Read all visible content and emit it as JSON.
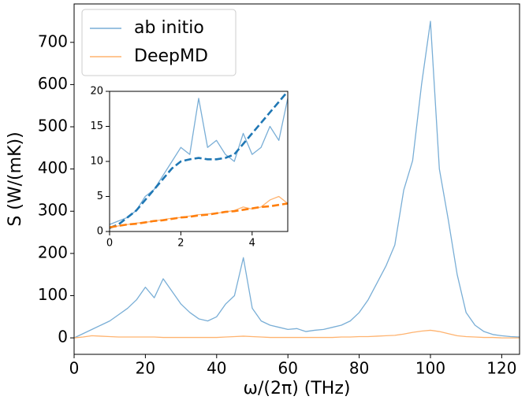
{
  "chart_data": [
    {
      "type": "line",
      "xlabel": "ω/(2π) (THz)",
      "ylabel": "S (W/(mK))",
      "x": [
        0,
        2.5,
        5,
        7.5,
        10,
        12.5,
        15,
        17.5,
        20,
        22.5,
        25,
        27.5,
        30,
        32.5,
        35,
        37.5,
        40,
        42.5,
        45,
        47.5,
        50,
        52.5,
        55,
        57.5,
        60,
        62.5,
        65,
        67.5,
        70,
        72.5,
        75,
        77.5,
        80,
        82.5,
        85,
        87.5,
        90,
        92.5,
        95,
        97.5,
        100,
        102.5,
        105,
        107.5,
        110,
        112.5,
        115,
        117.5,
        120,
        122.5,
        125
      ],
      "series": [
        {
          "name": "ab initio",
          "color": "#79aed6",
          "values": [
            0,
            10,
            20,
            30,
            40,
            55,
            70,
            90,
            120,
            95,
            140,
            110,
            80,
            60,
            45,
            40,
            50,
            80,
            100,
            190,
            70,
            40,
            30,
            25,
            20,
            22,
            15,
            18,
            20,
            25,
            30,
            40,
            60,
            90,
            130,
            170,
            220,
            350,
            420,
            600,
            750,
            400,
            280,
            150,
            60,
            30,
            15,
            8,
            5,
            3,
            2
          ]
        },
        {
          "name": "DeepMD",
          "color": "#ffb36f",
          "values": [
            0,
            2,
            5,
            4,
            3,
            2,
            2,
            2,
            2,
            2,
            1,
            1,
            1,
            1,
            1,
            1,
            1,
            2,
            3,
            4,
            3,
            2,
            1,
            1,
            1,
            1,
            1,
            1,
            1,
            1,
            2,
            2,
            3,
            3,
            4,
            5,
            6,
            9,
            13,
            16,
            18,
            15,
            10,
            5,
            3,
            2,
            1,
            1,
            0,
            0,
            0
          ]
        }
      ],
      "xlim": [
        0,
        125
      ],
      "ylim": [
        -39,
        791
      ],
      "xticks": [
        0,
        20,
        40,
        60,
        80,
        100,
        120
      ],
      "yticks": [
        0,
        100,
        200,
        300,
        400,
        500,
        600,
        700
      ],
      "legend": "upper left"
    },
    {
      "type": "line",
      "x": [
        0,
        0.25,
        0.5,
        0.75,
        1,
        1.25,
        1.5,
        1.75,
        2,
        2.25,
        2.5,
        2.75,
        3,
        3.25,
        3.5,
        3.75,
        4,
        4.25,
        4.5,
        4.75,
        5
      ],
      "series": [
        {
          "color": "#79aed6",
          "values": [
            1,
            1.5,
            2,
            3,
            5,
            6,
            8,
            10,
            12,
            11,
            19,
            12,
            13,
            11,
            10,
            14,
            11,
            12,
            15,
            13,
            19
          ]
        },
        {
          "color": "#ffb36f",
          "values": [
            0.5,
            0.8,
            1,
            1.2,
            1.3,
            1.5,
            1.7,
            1.9,
            2,
            2.2,
            2.4,
            2.5,
            2.6,
            2.8,
            3,
            3.5,
            3.2,
            3.5,
            4.5,
            5,
            4
          ]
        },
        {
          "color": "#1f77b4",
          "dashed": true,
          "values": [
            0.5,
            1,
            2,
            3,
            4.5,
            6,
            7.5,
            9,
            10,
            10.3,
            10.5,
            10.3,
            10.3,
            10.5,
            11,
            12.5,
            14,
            15.5,
            17,
            18.5,
            20
          ]
        },
        {
          "color": "#ff7f0e",
          "dashed": true,
          "values": [
            0.6,
            0.8,
            1,
            1.1,
            1.3,
            1.5,
            1.6,
            1.8,
            2,
            2.1,
            2.3,
            2.4,
            2.6,
            2.8,
            2.9,
            3.1,
            3.3,
            3.5,
            3.6,
            3.8,
            4
          ]
        }
      ],
      "xlim": [
        0,
        5
      ],
      "ylim": [
        0,
        20
      ],
      "xticks": [
        0,
        2,
        4
      ],
      "yticks": [
        0,
        5,
        10,
        15,
        20
      ]
    }
  ]
}
